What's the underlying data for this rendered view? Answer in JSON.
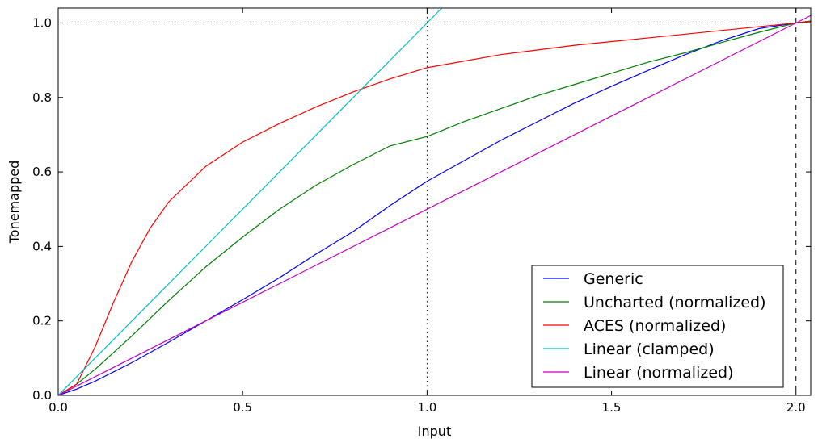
{
  "chart_data": {
    "type": "line",
    "xlabel": "Input",
    "ylabel": "Tonemapped",
    "xlim": [
      0.0,
      2.04
    ],
    "ylim": [
      0.0,
      1.04
    ],
    "xticks": [
      0.0,
      0.5,
      1.0,
      1.5,
      2.0
    ],
    "xtick_labels": [
      "0.0",
      "0.5",
      "1.0",
      "1.5",
      "2.0"
    ],
    "yticks": [
      0.0,
      0.2,
      0.4,
      0.6,
      0.8,
      1.0
    ],
    "ytick_labels": [
      "0.0",
      "0.2",
      "0.4",
      "0.6",
      "0.8",
      "1.0"
    ],
    "grid": false,
    "legend_position": "bottom-right",
    "reference_lines": [
      {
        "orientation": "horizontal",
        "value": 1.0,
        "style": "dashed"
      },
      {
        "orientation": "vertical",
        "value": 2.0,
        "style": "dashed"
      },
      {
        "orientation": "vertical",
        "value": 1.0,
        "style": "dotted"
      }
    ],
    "series": [
      {
        "name": "Generic",
        "color": "#0000ff",
        "x": [
          0.0,
          0.05,
          0.1,
          0.2,
          0.3,
          0.4,
          0.5,
          0.6,
          0.7,
          0.8,
          0.9,
          1.0,
          1.1,
          1.2,
          1.3,
          1.4,
          1.5,
          1.6,
          1.7,
          1.8,
          1.9,
          2.0,
          2.04
        ],
        "y": [
          0.0,
          0.017,
          0.038,
          0.088,
          0.143,
          0.2,
          0.257,
          0.316,
          0.38,
          0.44,
          0.51,
          0.575,
          0.63,
          0.685,
          0.735,
          0.785,
          0.83,
          0.873,
          0.915,
          0.953,
          0.985,
          1.0,
          1.005
        ]
      },
      {
        "name": "Uncharted (normalized)",
        "color": "#008000",
        "x": [
          0.0,
          0.05,
          0.1,
          0.2,
          0.3,
          0.4,
          0.5,
          0.6,
          0.7,
          0.8,
          0.9,
          1.0,
          1.1,
          1.2,
          1.3,
          1.4,
          1.5,
          1.6,
          1.7,
          1.8,
          1.9,
          2.0,
          2.04
        ],
        "y": [
          0.0,
          0.03,
          0.07,
          0.16,
          0.255,
          0.345,
          0.425,
          0.5,
          0.565,
          0.62,
          0.67,
          0.695,
          0.735,
          0.77,
          0.805,
          0.835,
          0.865,
          0.895,
          0.92,
          0.948,
          0.975,
          1.0,
          1.005
        ]
      },
      {
        "name": "ACES (normalized)",
        "color": "#ff0000",
        "x": [
          0.0,
          0.05,
          0.1,
          0.15,
          0.2,
          0.25,
          0.3,
          0.4,
          0.5,
          0.6,
          0.7,
          0.8,
          0.9,
          1.0,
          1.2,
          1.4,
          1.6,
          1.8,
          2.0,
          2.04
        ],
        "y": [
          0.0,
          0.03,
          0.13,
          0.25,
          0.36,
          0.45,
          0.52,
          0.615,
          0.68,
          0.73,
          0.775,
          0.815,
          0.85,
          0.88,
          0.915,
          0.94,
          0.96,
          0.98,
          1.0,
          1.003
        ]
      },
      {
        "name": "Linear (clamped)",
        "color": "#00bfbf",
        "x": [
          0.0,
          1.04
        ],
        "y": [
          0.0,
          1.04
        ]
      },
      {
        "name": "Linear (normalized)",
        "color": "#bf00bf",
        "x": [
          0.0,
          2.04
        ],
        "y": [
          0.0,
          1.02
        ]
      }
    ]
  }
}
